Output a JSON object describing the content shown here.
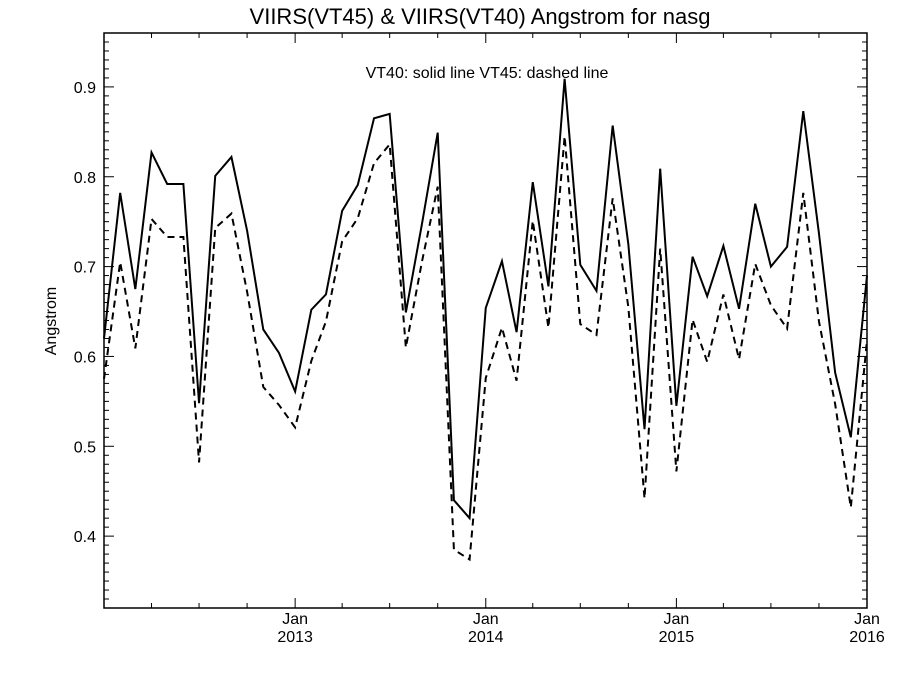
{
  "chart_data": {
    "type": "line",
    "title": "VIIRS(VT45) & VIIRS(VT40)  Angstrom for nasg",
    "annotation": "VT40: solid line   VT45: dashed line",
    "ylabel": "Angstrom",
    "xlabel": "",
    "xlim": [
      "2012-01-01",
      "2016-01-01"
    ],
    "ylim": [
      0.32,
      0.96
    ],
    "yticks": [
      0.4,
      0.5,
      0.6,
      0.7,
      0.8,
      0.9
    ],
    "ytick_labels": [
      "0.4",
      "0.5",
      "0.6",
      "0.7",
      "0.8",
      "0.9"
    ],
    "xticks": [
      {
        "date": "2013-01-01",
        "month": "Jan",
        "year": "2013"
      },
      {
        "date": "2014-01-01",
        "month": "Jan",
        "year": "2014"
      },
      {
        "date": "2015-01-01",
        "month": "Jan",
        "year": "2015"
      },
      {
        "date": "2016-01-01",
        "month": "Jan",
        "year": "2016"
      }
    ],
    "grid": false,
    "legend": "none",
    "x": [
      "2012-01-01",
      "2012-02-01",
      "2012-03-01",
      "2012-04-01",
      "2012-05-01",
      "2012-06-01",
      "2012-07-01",
      "2012-08-01",
      "2012-09-01",
      "2012-10-01",
      "2012-11-01",
      "2012-12-01",
      "2013-01-01",
      "2013-02-01",
      "2013-03-01",
      "2013-04-01",
      "2013-05-01",
      "2013-06-01",
      "2013-07-01",
      "2013-08-01",
      "2013-09-01",
      "2013-10-01",
      "2013-11-01",
      "2013-12-01",
      "2014-01-01",
      "2014-02-01",
      "2014-03-01",
      "2014-04-01",
      "2014-05-01",
      "2014-06-01",
      "2014-07-01",
      "2014-08-01",
      "2014-09-01",
      "2014-10-01",
      "2014-11-01",
      "2014-12-01",
      "2015-01-01",
      "2015-02-01",
      "2015-03-01",
      "2015-04-01",
      "2015-05-01",
      "2015-06-01",
      "2015-07-01",
      "2015-08-01",
      "2015-09-01",
      "2015-10-01",
      "2015-11-01",
      "2015-12-01",
      "2016-01-01"
    ],
    "series": [
      {
        "name": "VT40",
        "style": "solid",
        "color": "#000000",
        "values": [
          0.62,
          0.782,
          0.675,
          0.827,
          0.792,
          0.792,
          0.548,
          0.801,
          0.822,
          0.74,
          0.63,
          0.604,
          0.561,
          0.652,
          0.669,
          0.762,
          0.791,
          0.865,
          0.87,
          0.649,
          0.748,
          0.849,
          0.44,
          0.42,
          0.654,
          0.706,
          0.627,
          0.794,
          0.678,
          0.909,
          0.702,
          0.673,
          0.857,
          0.725,
          0.519,
          0.809,
          0.545,
          0.711,
          0.667,
          0.723,
          0.653,
          0.77,
          0.7,
          0.722,
          0.873,
          0.737,
          0.582,
          0.51,
          0.69
        ]
      },
      {
        "name": "VT45",
        "style": "dashed",
        "color": "#000000",
        "values": [
          0.575,
          0.705,
          0.609,
          0.753,
          0.733,
          0.733,
          0.482,
          0.743,
          0.759,
          0.672,
          0.566,
          0.546,
          0.521,
          0.595,
          0.639,
          0.728,
          0.754,
          0.815,
          0.836,
          0.61,
          0.706,
          0.789,
          0.385,
          0.374,
          0.576,
          0.632,
          0.573,
          0.751,
          0.632,
          0.845,
          0.636,
          0.624,
          0.776,
          0.655,
          0.442,
          0.72,
          0.472,
          0.641,
          0.594,
          0.669,
          0.597,
          0.703,
          0.657,
          0.631,
          0.782,
          0.639,
          0.547,
          0.432,
          0.618
        ]
      }
    ]
  }
}
